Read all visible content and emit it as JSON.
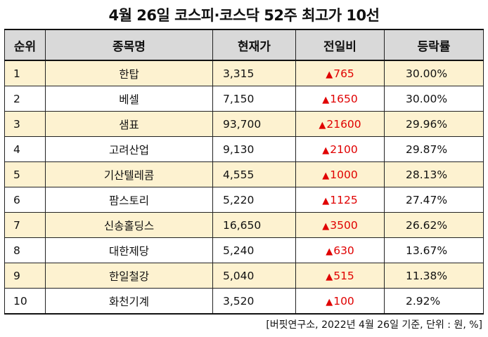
{
  "title": "4월 26일 코스피·코스닥 52주 최고가 10선",
  "headers": [
    "순위",
    "종목명",
    "현재가",
    "전일비",
    "등락률"
  ],
  "up_symbol": "▲",
  "rows": [
    {
      "rank": "1",
      "name": "한탑",
      "price": "3,315",
      "change": "765",
      "rate": "30.00%"
    },
    {
      "rank": "2",
      "name": "베셀",
      "price": "7,150",
      "change": "1650",
      "rate": "30.00%"
    },
    {
      "rank": "3",
      "name": "샘표",
      "price": "93,700",
      "change": "21600",
      "rate": "29.96%"
    },
    {
      "rank": "4",
      "name": "고려산업",
      "price": "9,130",
      "change": "2100",
      "rate": "29.87%"
    },
    {
      "rank": "5",
      "name": "기산텔레콤",
      "price": "4,555",
      "change": "1000",
      "rate": "28.13%"
    },
    {
      "rank": "6",
      "name": "팜스토리",
      "price": "5,220",
      "change": "1125",
      "rate": "27.47%"
    },
    {
      "rank": "7",
      "name": "신송홀딩스",
      "price": "16,650",
      "change": "3500",
      "rate": "26.62%"
    },
    {
      "rank": "8",
      "name": "대한제당",
      "price": "5,240",
      "change": "630",
      "rate": "13.67%"
    },
    {
      "rank": "9",
      "name": "한일철강",
      "price": "5,040",
      "change": "515",
      "rate": "11.38%"
    },
    {
      "rank": "10",
      "name": "화천기계",
      "price": "3,520",
      "change": "100",
      "rate": "2.92%"
    }
  ],
  "footnote": "[버핏연구소, 2022년 4월 26일 기준, 단위 : 원, %]",
  "colors": {
    "header_bg": "#d9d9d9",
    "odd_row_bg": "#fdf2d0",
    "up_red": "#e00000"
  }
}
